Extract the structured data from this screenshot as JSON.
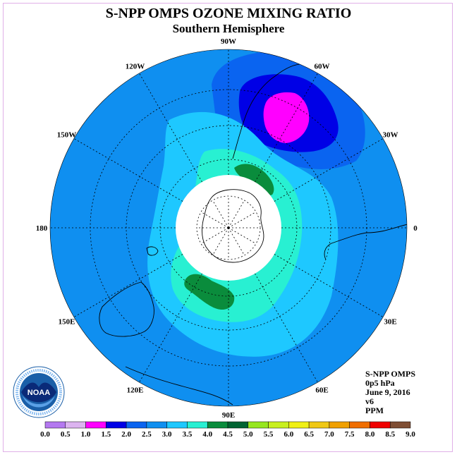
{
  "header": {
    "title": "S-NPP OMPS OZONE MIXING RATIO",
    "subtitle": "Southern Hemisphere"
  },
  "map": {
    "projection": "south-polar-stereographic",
    "longitude_labels": [
      {
        "text": "0",
        "lon": 0
      },
      {
        "text": "30W",
        "lon": -30
      },
      {
        "text": "60W",
        "lon": -60
      },
      {
        "text": "90W",
        "lon": -90
      },
      {
        "text": "120W",
        "lon": -120
      },
      {
        "text": "150W",
        "lon": -150
      },
      {
        "text": "180",
        "lon": 180
      },
      {
        "text": "150E",
        "lon": 150
      },
      {
        "text": "120E",
        "lon": 120
      },
      {
        "text": "90E",
        "lon": 90
      },
      {
        "text": "60E",
        "lon": 60
      },
      {
        "text": "30E",
        "lon": 30
      }
    ],
    "background_level_color": "#0f8ff0",
    "no_data_region": "polar night",
    "colors": {
      "c1_5": "#ff00ff",
      "c2_0": "#0000e6",
      "c2_5": "#0a64f0",
      "c3_0": "#0f8ff0",
      "c3_5": "#1ec8ff",
      "c4_0": "#28f0d2",
      "c4_5": "#0a8c3c"
    }
  },
  "info": {
    "instrument": "S-NPP OMPS",
    "level": "0p5 hPa",
    "date": "June 9, 2016",
    "version": "v6",
    "units": "PPM"
  },
  "colorbar": {
    "ticks": [
      "0.0",
      "0.5",
      "1.0",
      "1.5",
      "2.0",
      "2.5",
      "3.0",
      "3.5",
      "4.0",
      "4.5",
      "5.0",
      "5.5",
      "6.0",
      "6.5",
      "7.0",
      "7.5",
      "8.0",
      "8.5",
      "9.0"
    ],
    "colors": [
      "#b478f0",
      "#dcb4f0",
      "#ff00ff",
      "#0000e6",
      "#0a64f0",
      "#0f8ff0",
      "#1ec8ff",
      "#28f0d2",
      "#0a8c3c",
      "#006432",
      "#96e61e",
      "#c8f01e",
      "#f0f014",
      "#f0c814",
      "#f0a000",
      "#f06e00",
      "#f00000",
      "#7f4e34"
    ]
  },
  "logo": {
    "text": "NOAA",
    "ring_text": "NATIONAL OCEANIC AND ATMOSPHERIC ADMINISTRATION · U.S. DEPARTMENT OF COMMERCE",
    "icon": "noaa-seal-icon"
  }
}
